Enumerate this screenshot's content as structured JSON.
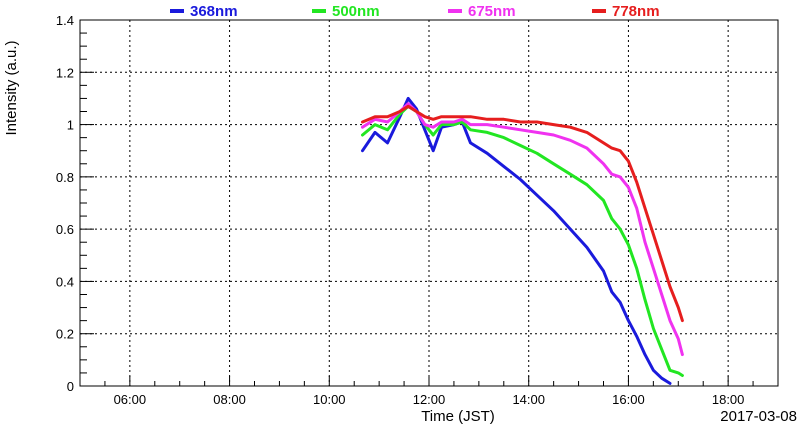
{
  "chart_data": {
    "type": "line",
    "title": "",
    "xlabel": "Time (JST)",
    "ylabel": "Intensity (a.u.)",
    "date_label": "2017-03-08",
    "xlim": [
      "05:00",
      "19:00"
    ],
    "ylim": [
      0,
      1.4
    ],
    "grid": true,
    "legend_placement": "top",
    "x_ticks": [
      "06:00",
      "08:00",
      "10:00",
      "12:00",
      "14:00",
      "16:00",
      "18:00"
    ],
    "y_ticks": [
      "0",
      "0.2",
      "0.4",
      "0.6",
      "0.8",
      "1",
      "1.2",
      "1.4"
    ],
    "series": [
      {
        "name": "368nm",
        "color": "#1a1adc",
        "points": [
          [
            "10:40",
            0.9
          ],
          [
            "10:55",
            0.97
          ],
          [
            "11:10",
            0.93
          ],
          [
            "11:25",
            1.03
          ],
          [
            "11:35",
            1.1
          ],
          [
            "11:45",
            1.06
          ],
          [
            "11:55",
            0.98
          ],
          [
            "12:05",
            0.9
          ],
          [
            "12:15",
            0.99
          ],
          [
            "12:30",
            1.0
          ],
          [
            "12:40",
            1.01
          ],
          [
            "12:50",
            0.93
          ],
          [
            "13:10",
            0.89
          ],
          [
            "13:30",
            0.84
          ],
          [
            "13:50",
            0.79
          ],
          [
            "14:10",
            0.73
          ],
          [
            "14:30",
            0.67
          ],
          [
            "14:50",
            0.6
          ],
          [
            "15:10",
            0.53
          ],
          [
            "15:30",
            0.44
          ],
          [
            "15:40",
            0.36
          ],
          [
            "15:50",
            0.32
          ],
          [
            "16:00",
            0.25
          ],
          [
            "16:10",
            0.19
          ],
          [
            "16:20",
            0.12
          ],
          [
            "16:30",
            0.06
          ],
          [
            "16:40",
            0.03
          ],
          [
            "16:50",
            0.01
          ]
        ]
      },
      {
        "name": "500nm",
        "color": "#22e622",
        "points": [
          [
            "10:40",
            0.96
          ],
          [
            "10:55",
            1.0
          ],
          [
            "11:10",
            0.98
          ],
          [
            "11:25",
            1.04
          ],
          [
            "11:35",
            1.07
          ],
          [
            "11:45",
            1.05
          ],
          [
            "11:55",
            1.0
          ],
          [
            "12:05",
            0.96
          ],
          [
            "12:15",
            1.0
          ],
          [
            "12:30",
            1.0
          ],
          [
            "12:40",
            1.01
          ],
          [
            "12:50",
            0.98
          ],
          [
            "13:10",
            0.97
          ],
          [
            "13:30",
            0.95
          ],
          [
            "13:50",
            0.92
          ],
          [
            "14:10",
            0.89
          ],
          [
            "14:30",
            0.85
          ],
          [
            "14:50",
            0.81
          ],
          [
            "15:10",
            0.77
          ],
          [
            "15:30",
            0.71
          ],
          [
            "15:40",
            0.64
          ],
          [
            "15:50",
            0.6
          ],
          [
            "16:00",
            0.54
          ],
          [
            "16:10",
            0.45
          ],
          [
            "16:20",
            0.33
          ],
          [
            "16:30",
            0.22
          ],
          [
            "16:40",
            0.14
          ],
          [
            "16:50",
            0.06
          ],
          [
            "17:00",
            0.05
          ],
          [
            "17:05",
            0.04
          ]
        ]
      },
      {
        "name": "675nm",
        "color": "#f032f0",
        "points": [
          [
            "10:40",
            0.99
          ],
          [
            "10:55",
            1.02
          ],
          [
            "11:10",
            1.01
          ],
          [
            "11:25",
            1.05
          ],
          [
            "11:35",
            1.08
          ],
          [
            "11:45",
            1.05
          ],
          [
            "11:55",
            1.0
          ],
          [
            "12:05",
            0.99
          ],
          [
            "12:15",
            1.01
          ],
          [
            "12:30",
            1.01
          ],
          [
            "12:40",
            1.02
          ],
          [
            "12:50",
            1.0
          ],
          [
            "13:10",
            1.0
          ],
          [
            "13:30",
            0.99
          ],
          [
            "13:50",
            0.98
          ],
          [
            "14:10",
            0.97
          ],
          [
            "14:30",
            0.96
          ],
          [
            "14:50",
            0.94
          ],
          [
            "15:10",
            0.91
          ],
          [
            "15:30",
            0.85
          ],
          [
            "15:40",
            0.81
          ],
          [
            "15:50",
            0.8
          ],
          [
            "16:00",
            0.76
          ],
          [
            "16:10",
            0.68
          ],
          [
            "16:20",
            0.55
          ],
          [
            "16:30",
            0.45
          ],
          [
            "16:40",
            0.35
          ],
          [
            "16:50",
            0.25
          ],
          [
            "17:00",
            0.18
          ],
          [
            "17:05",
            0.12
          ]
        ]
      },
      {
        "name": "778nm",
        "color": "#e61e1e",
        "points": [
          [
            "10:40",
            1.01
          ],
          [
            "10:55",
            1.03
          ],
          [
            "11:10",
            1.03
          ],
          [
            "11:25",
            1.05
          ],
          [
            "11:35",
            1.07
          ],
          [
            "11:45",
            1.05
          ],
          [
            "11:55",
            1.03
          ],
          [
            "12:05",
            1.02
          ],
          [
            "12:15",
            1.03
          ],
          [
            "12:30",
            1.03
          ],
          [
            "12:40",
            1.03
          ],
          [
            "12:50",
            1.03
          ],
          [
            "13:10",
            1.02
          ],
          [
            "13:30",
            1.02
          ],
          [
            "13:50",
            1.01
          ],
          [
            "14:10",
            1.01
          ],
          [
            "14:30",
            1.0
          ],
          [
            "14:50",
            0.99
          ],
          [
            "15:10",
            0.97
          ],
          [
            "15:30",
            0.93
          ],
          [
            "15:40",
            0.91
          ],
          [
            "15:50",
            0.9
          ],
          [
            "16:00",
            0.86
          ],
          [
            "16:10",
            0.78
          ],
          [
            "16:20",
            0.68
          ],
          [
            "16:30",
            0.58
          ],
          [
            "16:40",
            0.48
          ],
          [
            "16:50",
            0.38
          ],
          [
            "17:00",
            0.3
          ],
          [
            "17:05",
            0.25
          ]
        ]
      }
    ]
  }
}
